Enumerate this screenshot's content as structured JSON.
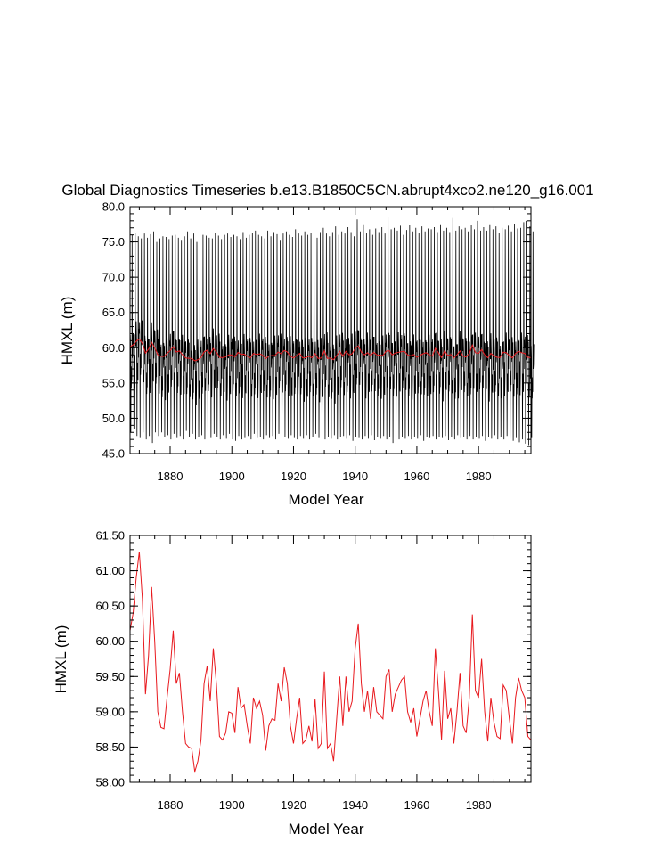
{
  "chart_data": [
    {
      "type": "line",
      "title": "Global Diagnostics Timeseries b.e13.B1850C5CN.abrupt4xco2.ne120_g16.001",
      "xlabel": "Model Year",
      "ylabel": "HMXL (m)",
      "xlim": [
        1867,
        1997
      ],
      "ylim": [
        45.0,
        80.0
      ],
      "xticks": [
        1880,
        1900,
        1920,
        1940,
        1960,
        1980
      ],
      "yticks": [
        "45.0",
        "50.0",
        "55.0",
        "60.0",
        "65.0",
        "70.0",
        "75.0",
        "80.0"
      ],
      "grid": false,
      "legend": "none",
      "series": [
        {
          "resolution": "monthly",
          "color": "#000000",
          "annual_cycle_shape": [
            0.18,
            0.12,
            0.1,
            0.05,
            -0.35,
            -0.55,
            -0.6,
            -0.52,
            -0.4,
            -0.2,
            0.05,
            0.15
          ],
          "annual_max_approx": [
            76.0,
            76.3,
            75.8,
            75.5,
            76.2,
            75.6,
            76.1,
            76.5,
            75.0,
            75.5,
            75.8,
            75.7,
            75.4,
            75.9,
            76.0,
            75.6,
            75.3,
            75.8,
            76.5,
            75.5,
            76.2,
            75.0,
            75.4,
            76.0,
            75.9,
            75.6,
            75.5,
            76.3,
            75.9,
            75.4,
            76.0,
            76.2,
            75.7,
            76.0,
            75.8,
            75.4,
            76.4,
            75.6,
            76.0,
            76.3,
            76.6,
            76.0,
            75.8,
            75.5,
            76.6,
            75.8,
            76.4,
            76.1,
            75.3,
            76.2,
            76.5,
            76.0,
            75.7,
            76.8,
            76.2,
            75.9,
            76.5,
            76.0,
            76.3,
            76.7,
            75.6,
            76.4,
            77.0,
            76.2,
            75.8,
            76.4,
            77.2,
            76.0,
            76.5,
            76.2,
            77.1,
            76.4,
            75.8,
            78.2,
            76.5,
            77.5,
            76.3,
            76.8,
            76.0,
            76.9,
            76.4,
            77.1,
            76.2,
            78.5,
            76.8,
            77.0,
            76.6,
            77.3,
            76.0,
            76.7,
            77.4,
            76.5,
            77.0,
            76.3,
            77.2,
            76.5,
            76.9,
            76.8,
            77.1,
            76.4,
            77.5,
            76.6,
            77.0,
            76.4,
            78.4,
            76.6,
            77.2,
            76.8,
            77.0,
            76.5,
            77.4,
            76.8,
            78.0,
            76.6,
            77.1,
            76.6,
            77.5,
            76.8,
            77.2,
            76.3,
            77.0,
            76.8,
            77.3,
            76.5,
            77.6,
            76.9,
            77.0,
            77.8,
            78.0,
            77.2
          ],
          "annual_min_approx": [
            48.0,
            48.5,
            47.5,
            47.2,
            48.0,
            47.0,
            47.5,
            46.5,
            48.0,
            47.5,
            48.0,
            47.3,
            47.6,
            47.0,
            47.8,
            47.2,
            47.5,
            47.0,
            48.2,
            47.4,
            47.8,
            47.0,
            47.3,
            47.6,
            47.0,
            47.5,
            47.2,
            47.8,
            47.3,
            47.0,
            47.6,
            47.1,
            47.8,
            47.0,
            46.8,
            47.5,
            47.0,
            47.2,
            47.5,
            47.0,
            47.8,
            47.2,
            47.4,
            47.0,
            47.6,
            47.2,
            47.5,
            47.0,
            47.8,
            47.0,
            47.4,
            47.1,
            47.6,
            47.2,
            47.0,
            47.5,
            47.1,
            47.6,
            47.0,
            47.3,
            47.8,
            47.2,
            47.5,
            47.0,
            47.4,
            47.1,
            47.6,
            47.0,
            47.3,
            47.5,
            47.1,
            47.6,
            46.8,
            47.4,
            47.2,
            47.0,
            47.5,
            47.1,
            47.6,
            46.9,
            47.4,
            47.1,
            47.5,
            47.0,
            47.3,
            46.5,
            47.6,
            47.0,
            47.4,
            47.1,
            47.5,
            47.0,
            47.3,
            47.1,
            47.6,
            46.8,
            47.4,
            47.2,
            47.5,
            47.0,
            47.3,
            47.2,
            47.5,
            46.9,
            47.3,
            47.0,
            47.6,
            47.2,
            47.4,
            47.0,
            47.5,
            47.0,
            47.3,
            47.1,
            47.5,
            46.8,
            47.4,
            47.1,
            47.6,
            47.0,
            47.3,
            47.0,
            47.5,
            47.1,
            46.8,
            47.2,
            46.6,
            47.0,
            46.4,
            46.2
          ]
        },
        {
          "resolution": "annual",
          "color": "#e8191e",
          "x": [
            1867,
            1868,
            1869,
            1870,
            1871,
            1872,
            1873,
            1874,
            1875,
            1876,
            1877,
            1878,
            1879,
            1880,
            1881,
            1882,
            1883,
            1884,
            1885,
            1886,
            1887,
            1888,
            1889,
            1890,
            1891,
            1892,
            1893,
            1894,
            1895,
            1896,
            1897,
            1898,
            1899,
            1900,
            1901,
            1902,
            1903,
            1904,
            1905,
            1906,
            1907,
            1908,
            1909,
            1910,
            1911,
            1912,
            1913,
            1914,
            1915,
            1916,
            1917,
            1918,
            1919,
            1920,
            1921,
            1922,
            1923,
            1924,
            1925,
            1926,
            1927,
            1928,
            1929,
            1930,
            1931,
            1932,
            1933,
            1934,
            1935,
            1936,
            1937,
            1938,
            1939,
            1940,
            1941,
            1942,
            1943,
            1944,
            1945,
            1946,
            1947,
            1948,
            1949,
            1950,
            1951,
            1952,
            1953,
            1954,
            1955,
            1956,
            1957,
            1958,
            1959,
            1960,
            1961,
            1962,
            1963,
            1964,
            1965,
            1966,
            1967,
            1968,
            1969,
            1970,
            1971,
            1972,
            1973,
            1974,
            1975,
            1976,
            1977,
            1978,
            1979,
            1980,
            1981,
            1982,
            1983,
            1984,
            1985,
            1986,
            1987,
            1988,
            1989,
            1990,
            1991,
            1992,
            1993,
            1994,
            1995,
            1996,
            1997
          ],
          "y": [
            60.15,
            60.4,
            60.9,
            61.27,
            60.6,
            59.25,
            59.8,
            60.77,
            60.0,
            59.0,
            58.78,
            58.76,
            59.2,
            59.6,
            60.15,
            59.4,
            59.55,
            59.0,
            58.55,
            58.5,
            58.48,
            58.15,
            58.3,
            58.6,
            59.4,
            59.65,
            59.15,
            59.9,
            59.4,
            58.65,
            58.6,
            58.7,
            59.0,
            58.98,
            58.7,
            59.35,
            59.05,
            59.1,
            58.8,
            58.55,
            59.2,
            59.05,
            59.15,
            58.95,
            58.45,
            58.8,
            58.9,
            58.88,
            59.4,
            59.15,
            59.63,
            59.4,
            58.8,
            58.55,
            58.9,
            59.2,
            58.55,
            58.6,
            58.8,
            58.58,
            59.18,
            58.48,
            58.55,
            59.57,
            58.48,
            58.55,
            58.3,
            58.9,
            59.5,
            58.8,
            59.5,
            59.0,
            59.15,
            59.9,
            60.25,
            59.4,
            59.0,
            59.3,
            58.9,
            59.35,
            59.0,
            58.95,
            58.9,
            59.5,
            59.6,
            59.0,
            59.25,
            59.35,
            59.45,
            59.5,
            59.0,
            58.85,
            59.05,
            58.65,
            58.9,
            59.15,
            59.3,
            59.0,
            58.8,
            59.9,
            59.3,
            58.6,
            59.58,
            58.9,
            59.05,
            58.55,
            59.0,
            59.55,
            58.8,
            58.7,
            59.2,
            60.38,
            59.3,
            59.2,
            59.75,
            59.0,
            58.58,
            59.2,
            58.85,
            58.65,
            58.62,
            59.38,
            59.3,
            58.9,
            58.55,
            59.2,
            59.48,
            59.3,
            59.2,
            58.65,
            58.6
          ]
        }
      ]
    },
    {
      "type": "line",
      "xlabel": "Model Year",
      "ylabel": "HMXL (m)",
      "xlim": [
        1867,
        1997
      ],
      "ylim": [
        58.0,
        61.5
      ],
      "xticks": [
        1880,
        1900,
        1920,
        1940,
        1960,
        1980
      ],
      "yticks": [
        "58.00",
        "58.50",
        "59.00",
        "59.50",
        "60.00",
        "60.50",
        "61.00",
        "61.50"
      ],
      "grid": false,
      "legend": "none",
      "series": [
        {
          "resolution": "annual",
          "color": "#e8191e",
          "same_as": "chart_data.0.series.1"
        }
      ]
    }
  ]
}
